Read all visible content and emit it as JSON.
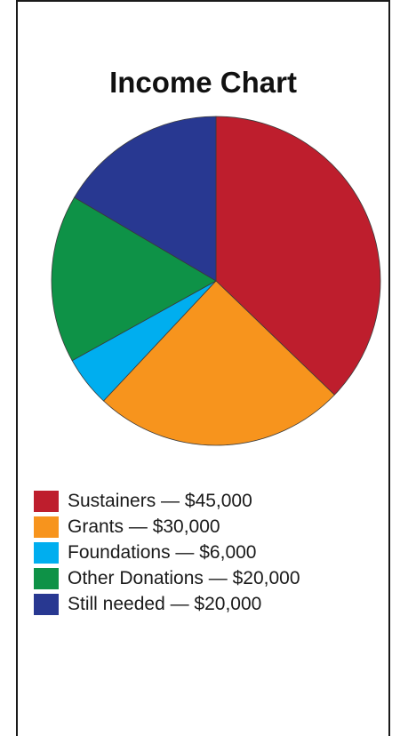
{
  "chart_data": {
    "type": "pie",
    "title": "Income Chart",
    "categories": [
      "Sustainers",
      "Grants",
      "Foundations",
      "Other Donations",
      "Still needed"
    ],
    "values": [
      45000,
      30000,
      6000,
      20000,
      20000
    ],
    "colors": [
      "#be1e2d",
      "#f7941d",
      "#00aeef",
      "#0e9247",
      "#283891"
    ],
    "legend": [
      {
        "label": "Sustainers — $45,000",
        "color": "#be1e2d"
      },
      {
        "label": "Grants — $30,000",
        "color": "#f7941d"
      },
      {
        "label": "Foundations — $6,000",
        "color": "#00aeef"
      },
      {
        "label": "Other Donations — $20,000",
        "color": "#0e9247"
      },
      {
        "label": "Still needed — $20,000",
        "color": "#283891"
      }
    ],
    "start_angle": "12 o'clock",
    "direction": "clockwise",
    "legend_position": "bottom-left"
  }
}
